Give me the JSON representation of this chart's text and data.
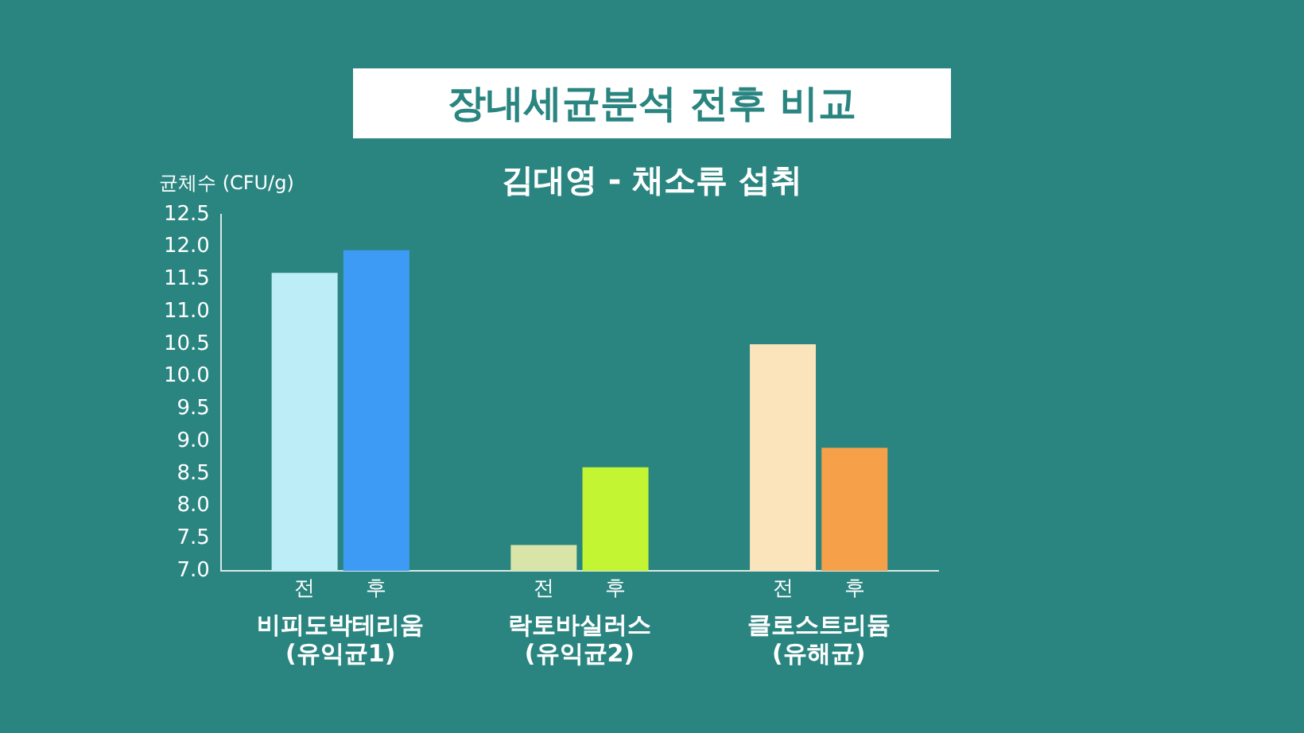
{
  "chart_data": {
    "type": "bar",
    "title": "장내세균분석 전후 비교",
    "subtitle": "김대영 - 채소류 섭취",
    "ylabel": "균체수 (CFU/g)",
    "categories": [
      "비피도박테리움\n(유익균1)",
      "락토바실러스\n(유익균2)",
      "클로스트리듐\n(유해균)"
    ],
    "series": [
      {
        "name": "전",
        "colors": [
          "#bdeef8",
          "#d8e4a8",
          "#fbe3bb"
        ],
        "values": [
          11.6,
          7.4,
          10.5
        ]
      },
      {
        "name": "후",
        "colors": [
          "#3d9bf5",
          "#c4f532",
          "#f7a04a"
        ],
        "values": [
          11.95,
          8.6,
          8.9
        ]
      }
    ],
    "ylim": [
      7.0,
      12.5
    ],
    "yticks": [
      {
        "value": 7,
        "label": "7.0"
      },
      {
        "value": 7.5,
        "label": "7.5"
      },
      {
        "value": 8,
        "label": "8.0"
      },
      {
        "value": 8.5,
        "label": "8.5"
      },
      {
        "value": 9,
        "label": "9.0"
      },
      {
        "value": 9.5,
        "label": "9.5"
      },
      {
        "value": 10,
        "label": "10.0"
      },
      {
        "value": 10.5,
        "label": "10.5"
      },
      {
        "value": 11,
        "label": "11.0"
      },
      {
        "value": 11.5,
        "label": "11.5"
      },
      {
        "value": 12,
        "label": "12.0"
      },
      {
        "value": 12.5,
        "label": "12.5"
      }
    ],
    "grid": false,
    "legend": false
  }
}
